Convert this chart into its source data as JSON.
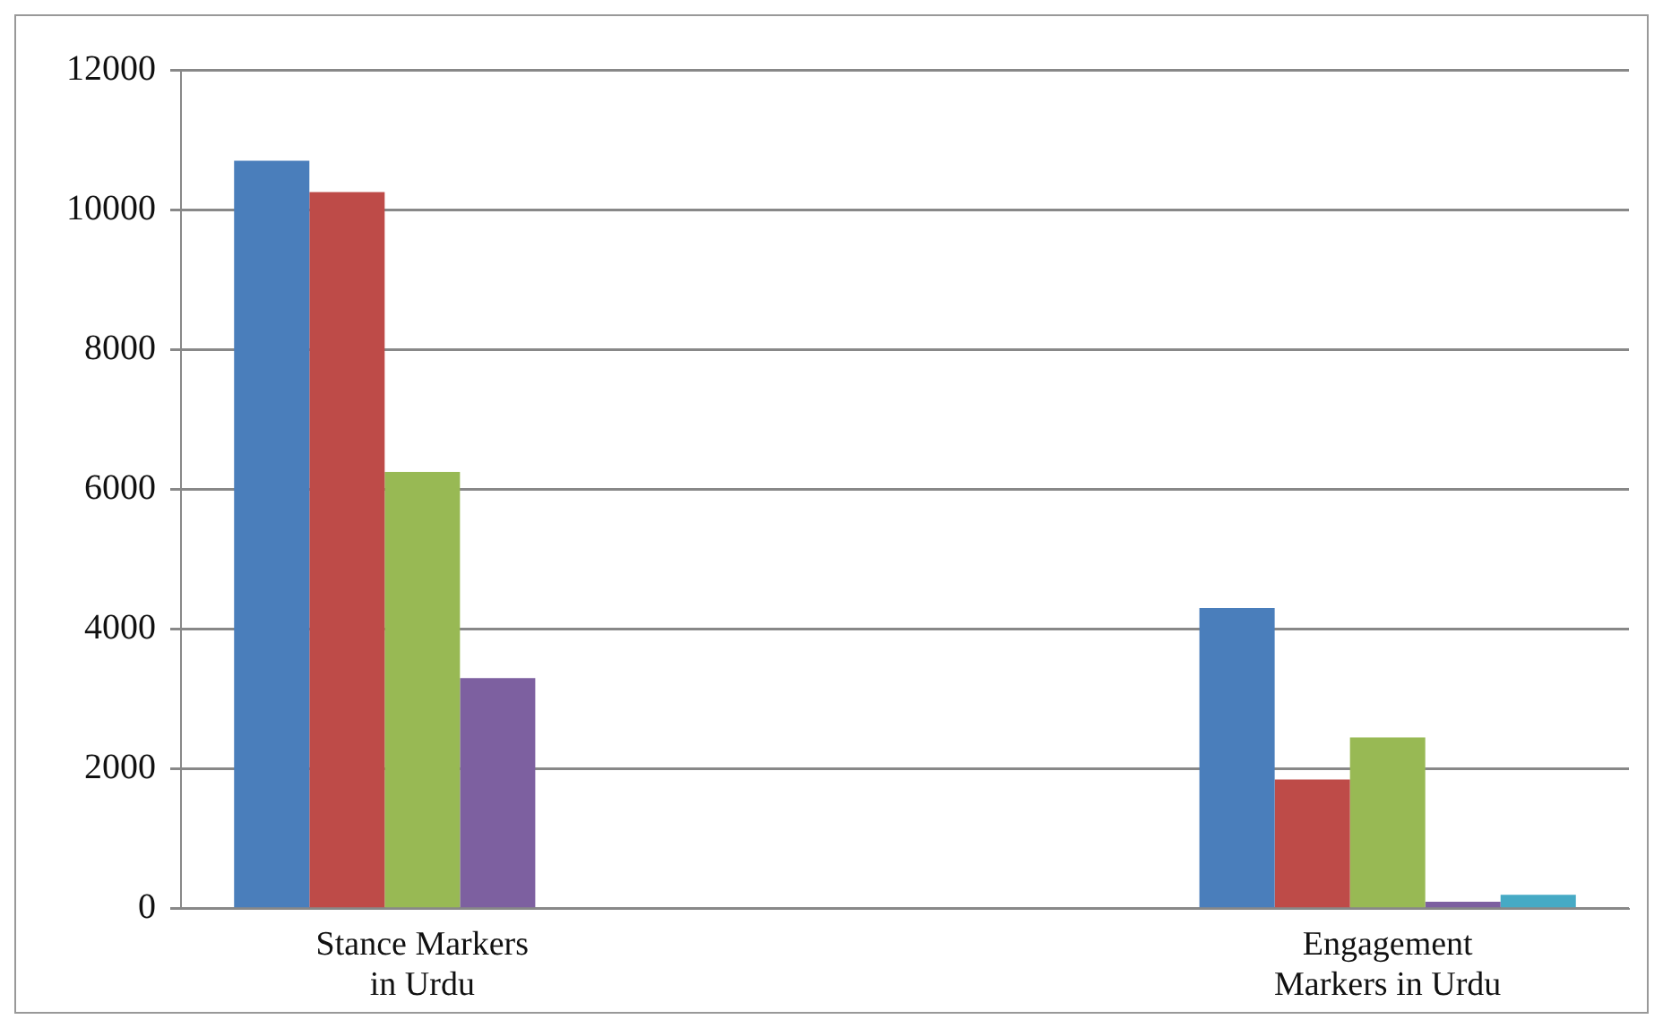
{
  "chart_data": {
    "type": "bar",
    "categories": [
      "Stance Markers in Urdu",
      null,
      "Engagement Markers in Urdu"
    ],
    "series": [
      {
        "color": "#4a7ebb",
        "values": [
          10700,
          null,
          4300
        ]
      },
      {
        "color": "#be4b48",
        "values": [
          10250,
          null,
          1850
        ]
      },
      {
        "color": "#98b954",
        "values": [
          6250,
          null,
          2450
        ]
      },
      {
        "color": "#7d60a0",
        "values": [
          3300,
          null,
          100
        ]
      },
      {
        "color": "#46aac5",
        "values": [
          0,
          null,
          200
        ]
      }
    ],
    "ylim": [
      0,
      12000
    ],
    "yticks": [
      0,
      2000,
      4000,
      6000,
      8000,
      10000,
      12000
    ],
    "grid": "y",
    "legend": false
  }
}
